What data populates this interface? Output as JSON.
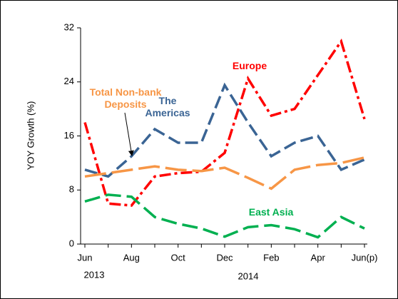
{
  "chart_data": {
    "type": "line",
    "y_label": "YOY Growth (%)",
    "categories": [
      "Jun",
      null,
      "Aug",
      null,
      "Oct",
      null,
      "Dec",
      null,
      "Feb",
      null,
      "Apr",
      null,
      "Jun(p)"
    ],
    "year_labels": [
      "2013",
      "2014"
    ],
    "ylim": [
      0,
      32
    ],
    "yticks": [
      0,
      8,
      16,
      24,
      32
    ],
    "grid": false,
    "series": [
      {
        "name": "Europe",
        "color": "#ff0000",
        "dash": "16 5 4 5",
        "values": [
          18,
          6,
          5.7,
          10,
          10.5,
          10.7,
          13.5,
          24.5,
          19,
          20,
          25,
          30,
          18.5
        ]
      },
      {
        "name": "The Americas",
        "color": "#3a6494",
        "dash": "18 7",
        "values": [
          11,
          10,
          13,
          17,
          15,
          15,
          23.5,
          18,
          13,
          15,
          16,
          11,
          12.5
        ]
      },
      {
        "name": "Total Non-bank Deposits",
        "color": "#f79646",
        "dash": "30 8",
        "values": [
          10,
          10.5,
          11,
          11.5,
          11,
          10.8,
          11.3,
          9.8,
          8.2,
          11,
          11.7,
          12,
          12.8
        ]
      },
      {
        "name": "East Asia",
        "color": "#00b050",
        "dash": "22 8",
        "values": [
          6.3,
          7.3,
          7,
          4,
          3,
          2.3,
          1.1,
          2.5,
          2.8,
          2.2,
          1,
          4,
          2.3
        ]
      }
    ]
  }
}
